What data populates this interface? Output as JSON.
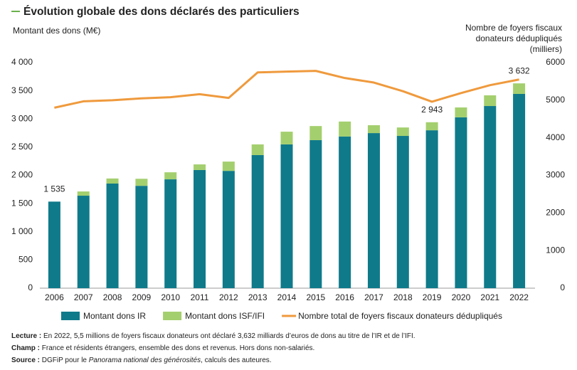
{
  "chart_data": {
    "type": "bar",
    "title": "Évolution globale des dons déclarés des particuliers",
    "ylabel": "Montant des dons (M€)",
    "y2label": [
      "Nombre de foyers fiscaux",
      "donateurs dédupliqués",
      "(milliers)"
    ],
    "categories": [
      "2006",
      "2007",
      "2008",
      "2009",
      "2010",
      "2011",
      "2012",
      "2013",
      "2014",
      "2015",
      "2016",
      "2017",
      "2018",
      "2019",
      "2020",
      "2021",
      "2022"
    ],
    "series": [
      {
        "name": "Montant dons IR",
        "type": "bar",
        "color": "#0f7a8a",
        "values": [
          1535,
          1640,
          1855,
          1815,
          1930,
          2095,
          2080,
          2360,
          2550,
          2625,
          2690,
          2750,
          2700,
          2800,
          3030,
          3230,
          3445
        ]
      },
      {
        "name": "Montant dons ISF/IFI",
        "type": "bar",
        "color": "#a4cf6e",
        "values": [
          0,
          75,
          90,
          125,
          125,
          100,
          165,
          190,
          225,
          250,
          265,
          140,
          150,
          143,
          175,
          190,
          187
        ]
      },
      {
        "name": "Nombre total de foyers fiscaux donateurs dédupliqués",
        "type": "line",
        "axis": "y2",
        "color": "#ef9a3d",
        "values": [
          4800,
          4970,
          5000,
          5050,
          5080,
          5160,
          5060,
          5740,
          5760,
          5780,
          5590,
          5470,
          5240,
          4960,
          5190,
          5400,
          5550
        ]
      }
    ],
    "annotations": [
      {
        "category": "2006",
        "value": 1535,
        "label": "1 535"
      },
      {
        "category": "2019",
        "value": 2943,
        "label": "2 943"
      },
      {
        "category": "2022",
        "value": 3632,
        "label": "3 632"
      }
    ],
    "ylim": [
      0,
      4000
    ],
    "yticks": [
      0,
      500,
      {
        "value": 1000,
        "label": "1 000"
      },
      {
        "value": 1500,
        "label": "1 500"
      },
      {
        "value": 2000,
        "label": "2 000"
      },
      {
        "value": 2500,
        "label": "2 500"
      },
      {
        "value": 3000,
        "label": "3 000"
      },
      {
        "value": 3500,
        "label": "3 500"
      },
      {
        "value": 4000,
        "label": "4 000"
      }
    ],
    "y2lim": [
      0,
      6000
    ],
    "y2ticks": [
      0,
      1000,
      2000,
      3000,
      4000,
      5000,
      6000
    ],
    "grid": false
  },
  "notes": [
    {
      "label": "Lecture :",
      "text_parts": [
        "En 2022, 5,5 millions de foyers fiscaux donateurs ont déclaré 3,632 milliards d’euros de dons au titre de l’IR et de l’IFI."
      ]
    },
    {
      "label": "Champ :",
      "text_parts": [
        "France et résidents étrangers, ensemble des dons et revenus. Hors dons non-salariés."
      ]
    },
    {
      "label": "Source :",
      "text_parts": [
        "DGFiP pour le ",
        "Panorama national des générosités",
        ", calculs des auteures."
      ]
    }
  ]
}
